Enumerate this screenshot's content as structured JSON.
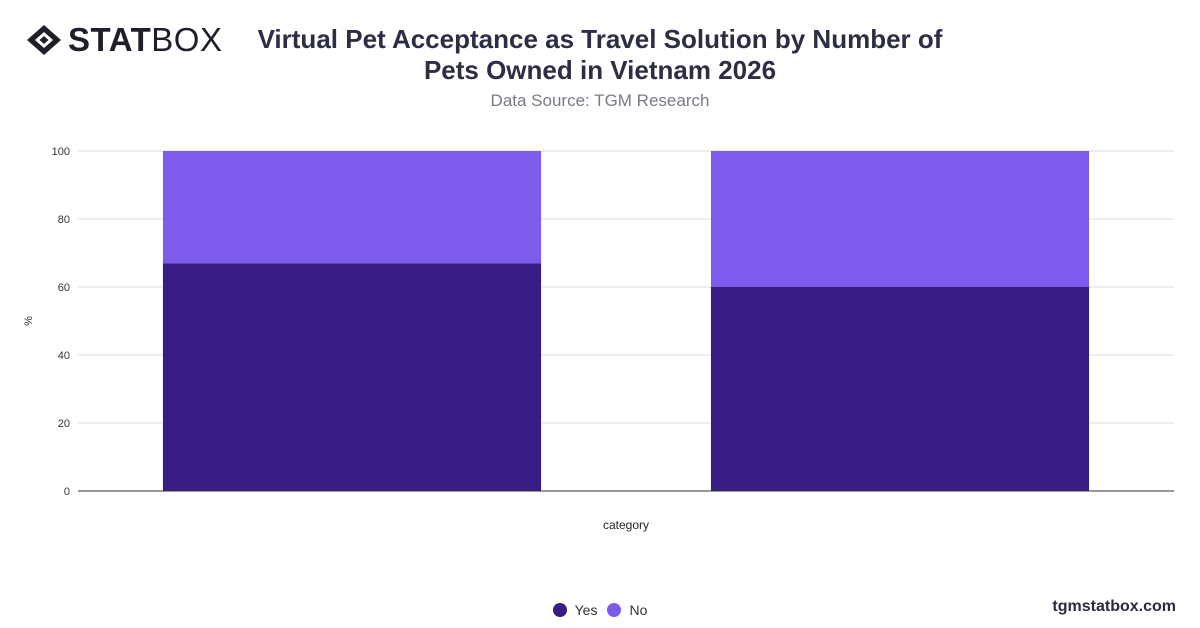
{
  "brand": {
    "logo_bold": "STAT",
    "logo_light": "BOX",
    "watermark": "tgmstatbox.com"
  },
  "chart_data": {
    "type": "bar",
    "stacked": true,
    "title": "Virtual Pet Acceptance as Travel Solution by Number of Pets Owned in Vietnam 2026",
    "subtitle": "Data Source: TGM Research",
    "xlabel": "category",
    "ylabel": "%",
    "ylim": [
      0,
      100
    ],
    "yticks": [
      0,
      20,
      40,
      60,
      80,
      100
    ],
    "categories": [
      "",
      ""
    ],
    "series": [
      {
        "name": "Yes",
        "color": "#371d85",
        "values": [
          67,
          60
        ]
      },
      {
        "name": "No",
        "color": "#7d5ced",
        "values": [
          33,
          40
        ]
      }
    ],
    "grid": true,
    "legend": "bottom-center"
  }
}
